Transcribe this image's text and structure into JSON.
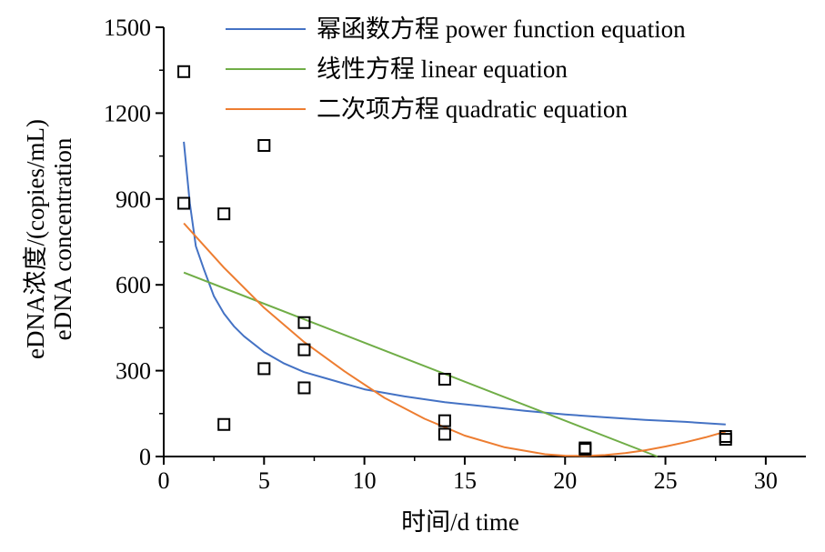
{
  "chart_data": {
    "type": "scatter",
    "xlabel": "时间/d time",
    "ylabel_lines": [
      "eDNA浓度/(copies/mL)",
      "eDNA concentration"
    ],
    "xlim": [
      0,
      32
    ],
    "ylim": [
      0,
      1500
    ],
    "xticks": [
      0,
      5,
      10,
      15,
      20,
      25,
      30
    ],
    "yticks": [
      0,
      300,
      600,
      900,
      1200,
      1500
    ],
    "grid": false,
    "legend_position": "top-right",
    "points": [
      {
        "x": 1,
        "y": 1345
      },
      {
        "x": 1,
        "y": 885
      },
      {
        "x": 3,
        "y": 848
      },
      {
        "x": 3,
        "y": 112
      },
      {
        "x": 5,
        "y": 1087
      },
      {
        "x": 5,
        "y": 307
      },
      {
        "x": 7,
        "y": 468
      },
      {
        "x": 7,
        "y": 373
      },
      {
        "x": 7,
        "y": 240
      },
      {
        "x": 14,
        "y": 270
      },
      {
        "x": 14,
        "y": 125
      },
      {
        "x": 14,
        "y": 78
      },
      {
        "x": 21,
        "y": 30
      },
      {
        "x": 21,
        "y": 25
      },
      {
        "x": 28,
        "y": 70
      },
      {
        "x": 28,
        "y": 60
      }
    ],
    "series": [
      {
        "name": "幂函数方程 power function equation",
        "color": "#4472c4",
        "x": [
          1,
          1.3,
          1.6,
          2,
          2.5,
          3,
          3.5,
          4,
          5,
          6,
          7,
          8,
          10,
          12,
          14,
          16,
          18,
          20,
          22,
          24,
          26,
          28
        ],
        "y": [
          1100,
          885,
          735,
          655,
          560,
          500,
          455,
          420,
          365,
          325,
          295,
          275,
          235,
          210,
          190,
          175,
          160,
          147,
          137,
          128,
          121,
          112
        ]
      },
      {
        "name": "线性方程 linear equation",
        "color": "#70ad47",
        "x": [
          1,
          24.6
        ],
        "y": [
          643,
          0
        ]
      },
      {
        "name": "二次项方程 quadratic equation",
        "color": "#ed7d31",
        "x": [
          1,
          3,
          5,
          7,
          9,
          11,
          13,
          15,
          17,
          19,
          20,
          21,
          22,
          23,
          24,
          25,
          26,
          27,
          28
        ],
        "y": [
          815,
          660,
          520,
          400,
          298,
          205,
          132,
          73,
          32,
          8,
          3,
          2,
          5,
          12,
          22,
          35,
          50,
          67,
          87
        ]
      }
    ]
  }
}
